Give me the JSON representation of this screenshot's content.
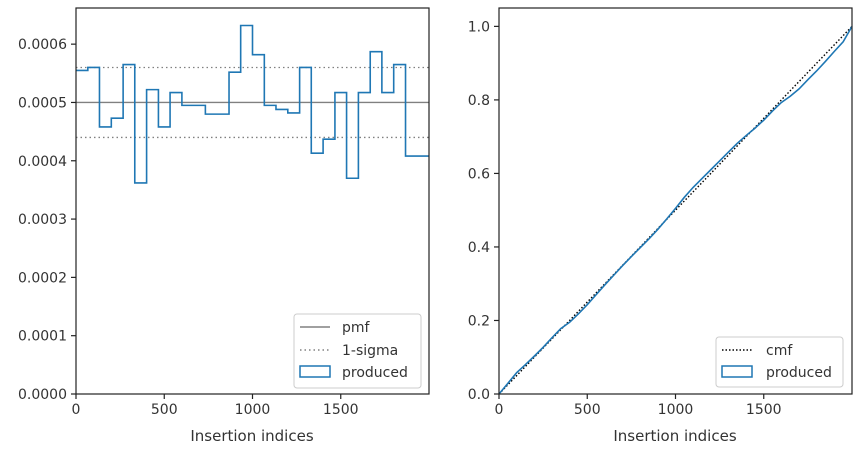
{
  "chart_data": [
    {
      "type": "step",
      "xlabel": "Insertion indices",
      "ylabel": "",
      "xlim": [
        0,
        2000
      ],
      "ylim": [
        0,
        0.000662
      ],
      "xticks": [
        0,
        500,
        1000,
        1500
      ],
      "xtick_labels": [
        "0",
        "500",
        "1000",
        "1500"
      ],
      "yticks": [
        0,
        0.0001,
        0.0002,
        0.0003,
        0.0004,
        0.0005,
        0.0006
      ],
      "ytick_labels": [
        "0.0000",
        "0.0001",
        "0.0002",
        "0.0003",
        "0.0004",
        "0.0005",
        "0.0006"
      ],
      "reference_lines": [
        {
          "name": "pmf",
          "y": 0.0005,
          "style": "solid",
          "color": "#808080"
        },
        {
          "name": "1-sigma",
          "y": 0.00056,
          "style": "dotted",
          "color": "#808080"
        },
        {
          "name": "1-sigma",
          "y": 0.00044,
          "style": "dotted",
          "color": "#808080"
        }
      ],
      "series": [
        {
          "name": "produced",
          "color": "#1f77b4",
          "bin_edges": [
            0,
            67,
            133,
            200,
            267,
            333,
            400,
            467,
            533,
            600,
            667,
            733,
            800,
            867,
            933,
            1000,
            1067,
            1133,
            1200,
            1267,
            1333,
            1400,
            1467,
            1533,
            1600,
            1667,
            1733,
            1800,
            1867,
            1933,
            2000
          ],
          "values": [
            0.000555,
            0.00056,
            0.000458,
            0.000473,
            0.000565,
            0.000362,
            0.000522,
            0.000458,
            0.000517,
            0.000495,
            0.000495,
            0.00048,
            0.00048,
            0.000552,
            0.000632,
            0.000582,
            0.000495,
            0.000488,
            0.000482,
            0.00056,
            0.000413,
            0.000437,
            0.000517,
            0.00037,
            0.000517,
            0.000587,
            0.000517,
            0.000565,
            0.000408,
            0.000408
          ]
        }
      ],
      "legend": {
        "placement": "lower-right",
        "entries": [
          "pmf",
          "1-sigma",
          "produced"
        ]
      }
    },
    {
      "type": "line",
      "xlabel": "Insertion indices",
      "ylabel": "",
      "xlim": [
        0,
        2000
      ],
      "ylim": [
        0,
        1.05
      ],
      "xticks": [
        0,
        500,
        1000,
        1500
      ],
      "xtick_labels": [
        "0",
        "500",
        "1000",
        "1500"
      ],
      "yticks": [
        0,
        0.2,
        0.4,
        0.6,
        0.8,
        1.0
      ],
      "ytick_labels": [
        "0.0",
        "0.2",
        "0.4",
        "0.6",
        "0.8",
        "1.0"
      ],
      "series": [
        {
          "name": "cmf",
          "color": "#000000",
          "style": "dotted",
          "x": [
            0,
            2000
          ],
          "y": [
            0,
            1.0
          ]
        },
        {
          "name": "produced",
          "color": "#1f77b4",
          "style": "solid",
          "x": [
            0,
            50,
            100,
            150,
            200,
            250,
            300,
            350,
            400,
            450,
            500,
            550,
            600,
            650,
            700,
            750,
            800,
            850,
            900,
            950,
            1000,
            1050,
            1100,
            1150,
            1200,
            1250,
            1300,
            1350,
            1400,
            1450,
            1500,
            1550,
            1600,
            1650,
            1700,
            1750,
            1800,
            1850,
            1900,
            1950,
            2000
          ],
          "y": [
            0,
            0.029,
            0.058,
            0.08,
            0.103,
            0.127,
            0.153,
            0.178,
            0.195,
            0.218,
            0.243,
            0.27,
            0.297,
            0.323,
            0.349,
            0.374,
            0.398,
            0.422,
            0.448,
            0.476,
            0.505,
            0.535,
            0.562,
            0.586,
            0.61,
            0.634,
            0.658,
            0.682,
            0.703,
            0.723,
            0.745,
            0.77,
            0.793,
            0.81,
            0.83,
            0.855,
            0.879,
            0.905,
            0.932,
            0.958,
            1.0
          ]
        }
      ],
      "legend": {
        "placement": "lower-right",
        "entries": [
          "cmf",
          "produced"
        ]
      }
    }
  ]
}
